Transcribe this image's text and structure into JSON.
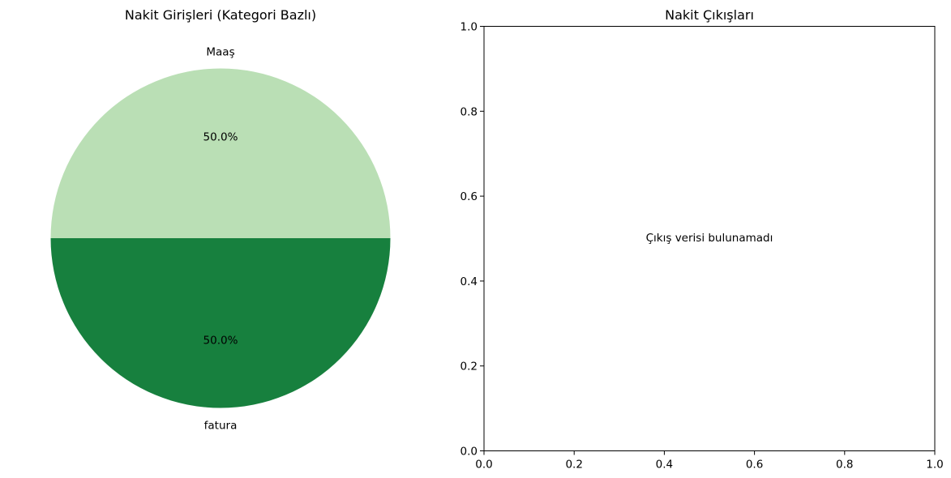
{
  "chart_data": [
    {
      "type": "pie",
      "title": "Nakit Girişleri (Kategori Bazlı)",
      "slices": [
        {
          "label": "Maaş",
          "value": 50.0,
          "pct_label": "50.0%",
          "color": "#badfb5"
        },
        {
          "label": "fatura",
          "value": 50.0,
          "pct_label": "50.0%",
          "color": "#17803e"
        }
      ]
    },
    {
      "type": "scatter",
      "title": "Nakit Çıkışları",
      "series": [],
      "xlim": [
        0.0,
        1.0
      ],
      "ylim": [
        0.0,
        1.0
      ],
      "xticks": [
        "0.0",
        "0.2",
        "0.4",
        "0.6",
        "0.8",
        "1.0"
      ],
      "yticks": [
        "0.0",
        "0.2",
        "0.4",
        "0.6",
        "0.8",
        "1.0"
      ],
      "annotation": "Çıkış verisi bulunamadı",
      "grid": false
    }
  ]
}
